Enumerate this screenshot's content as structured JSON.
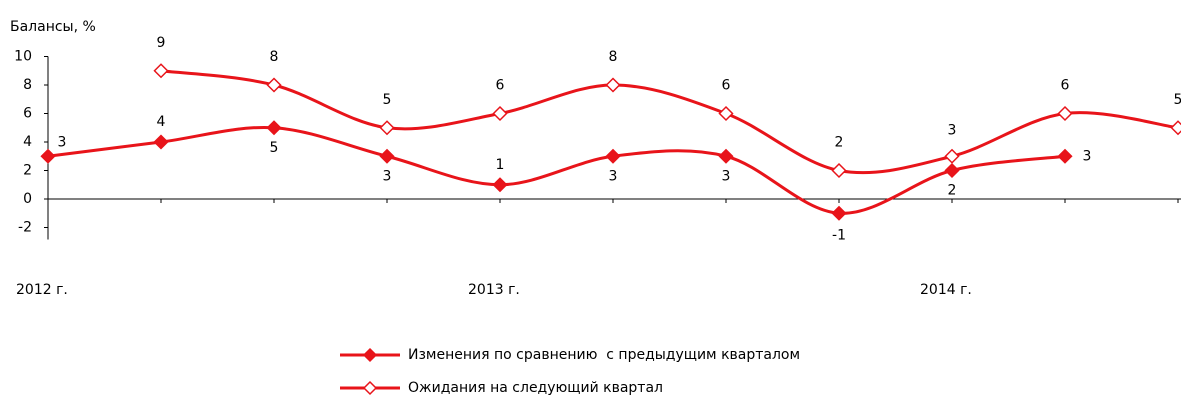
{
  "chart_data": {
    "type": "line",
    "y_label": "Балансы, %",
    "categories": [
      "2012 г.",
      null,
      null,
      null,
      "2013 г.",
      null,
      null,
      null,
      "2014 г.",
      null,
      null
    ],
    "series": [
      {
        "name": "Изменения по сравнению  с предыдущим кварталом",
        "color": "#e8141a",
        "marker": "filled-diamond",
        "values": [
          3,
          4,
          5,
          3,
          1,
          3,
          3,
          -1,
          2,
          3,
          null
        ]
      },
      {
        "name": "Ожидания на следующий квартал",
        "color": "#e8141a",
        "marker": "open-diamond",
        "values": [
          null,
          9,
          8,
          5,
          6,
          8,
          6,
          2,
          3,
          6,
          5
        ]
      }
    ],
    "ylim": [
      -2,
      10
    ],
    "yticks": [
      -2,
      0,
      2,
      4,
      6,
      8,
      10
    ],
    "legend": "bottom"
  }
}
